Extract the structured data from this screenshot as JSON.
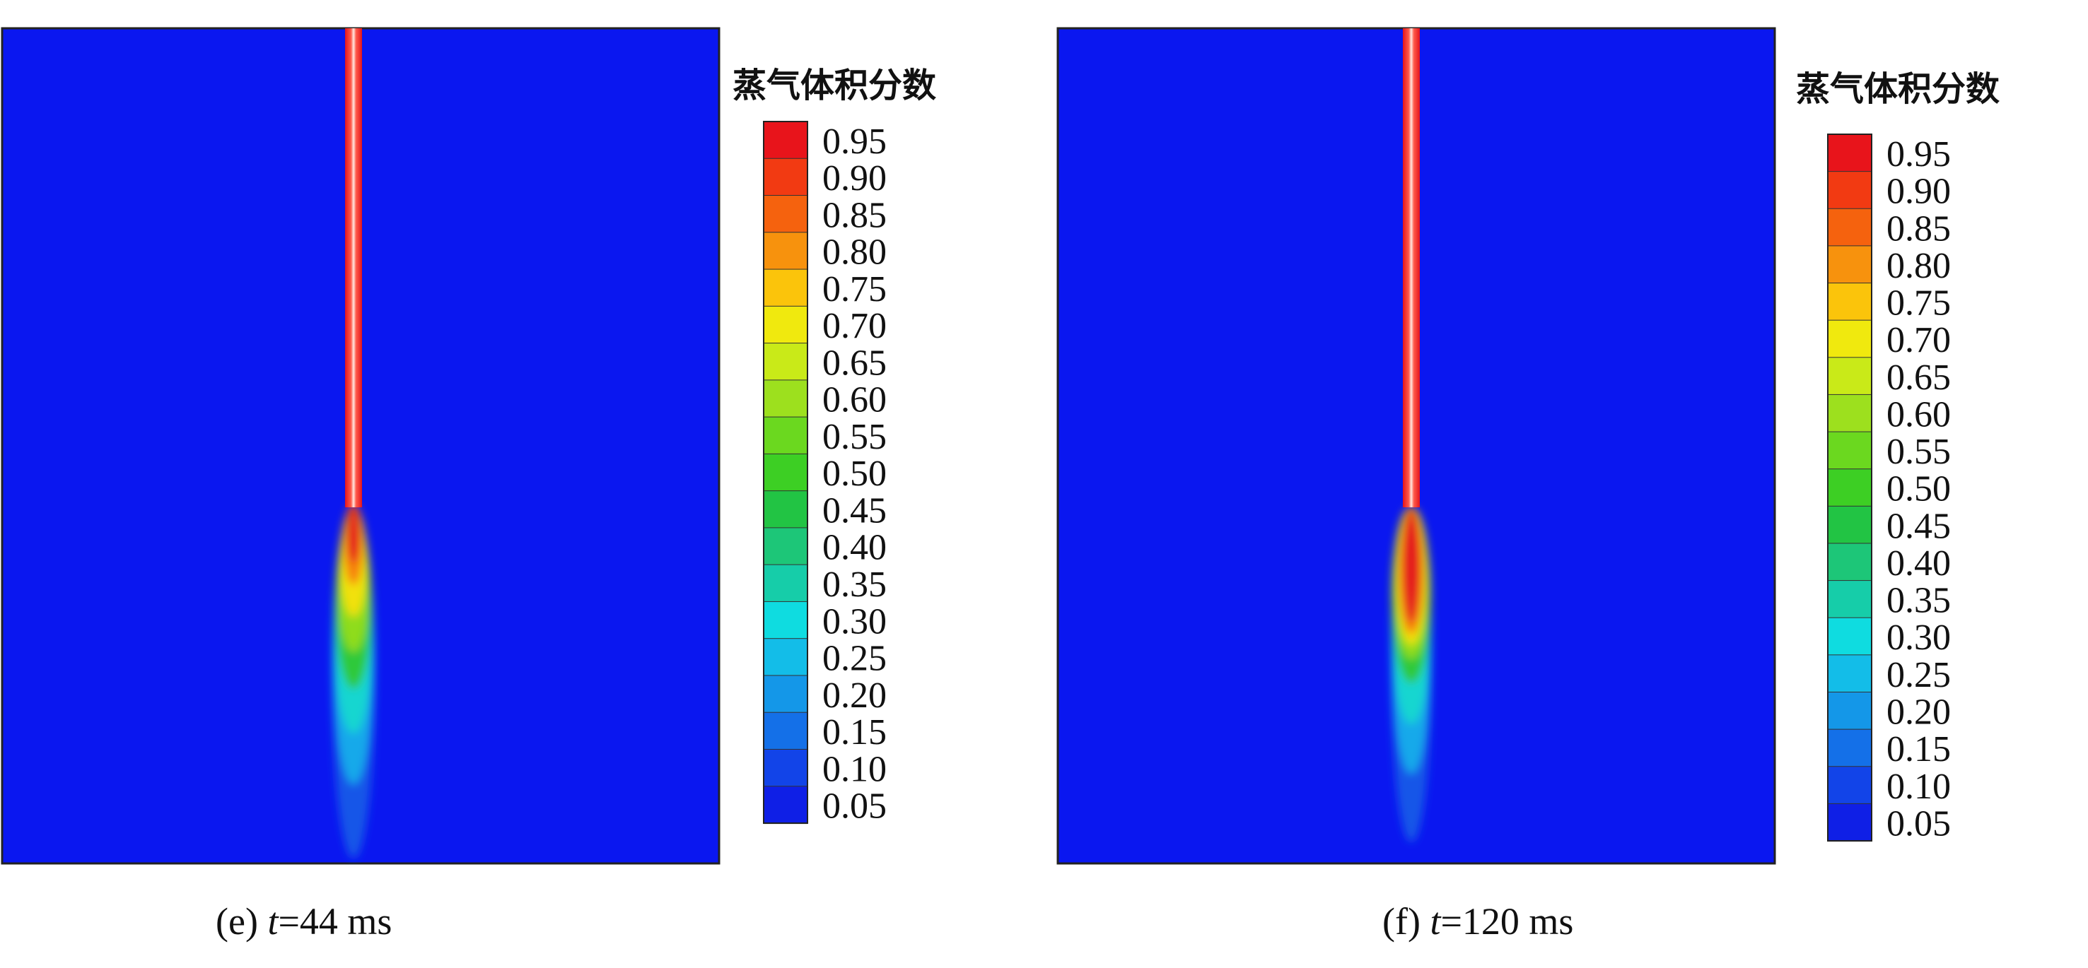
{
  "panels": [
    {
      "id": "e",
      "caption_prefix": "(e) ",
      "caption_var": "t",
      "caption_value": "=44 ms",
      "legend_title": "蒸气体积分数",
      "plume": {
        "max_level": 0.95,
        "min_level": 0.05
      }
    },
    {
      "id": "f",
      "caption_prefix": "(f) ",
      "caption_var": "t",
      "caption_value": "=120 ms",
      "legend_title": "蒸气体积分数",
      "plume": {
        "max_level": 0.95,
        "min_level": 0.05
      }
    }
  ],
  "legend_levels": [
    "0.95",
    "0.90",
    "0.85",
    "0.80",
    "0.75",
    "0.70",
    "0.65",
    "0.60",
    "0.55",
    "0.50",
    "0.45",
    "0.40",
    "0.35",
    "0.30",
    "0.25",
    "0.20",
    "0.15",
    "0.10",
    "0.05"
  ],
  "legend_colors": [
    "#e8141b",
    "#f23a12",
    "#f5620e",
    "#f7920d",
    "#fbc40b",
    "#f0e90e",
    "#c9ea18",
    "#9de01e",
    "#6bd81f",
    "#3dcf24",
    "#22c444",
    "#1dc678",
    "#16cda9",
    "#0fdce0",
    "#13bde8",
    "#1497e8",
    "#1470e8",
    "#1244e8",
    "#0f1fe6"
  ],
  "colors": {
    "background_field": "#0a17f0",
    "frame": "#222222",
    "text": "#111111"
  }
}
